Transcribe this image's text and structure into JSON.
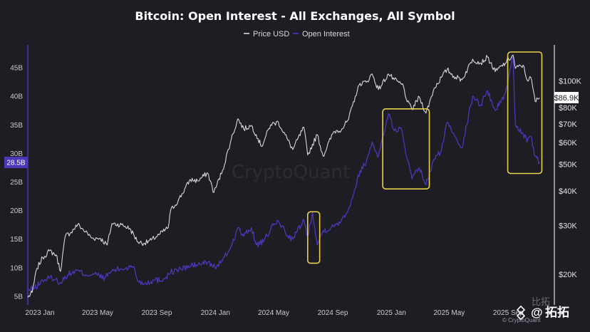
{
  "chart_data": {
    "type": "line",
    "title": "Bitcoin: Open Interest - All Exchanges, All Symbol",
    "legend": {
      "placement": "top-center",
      "entries": [
        {
          "name": "Price USD",
          "color": "#d7d7dd"
        },
        {
          "name": "Open Interest",
          "color": "#4a38b8"
        }
      ]
    },
    "x_axis": {
      "type": "date",
      "range": [
        "2023-01-01",
        "2025-12-31"
      ],
      "ticks": [
        {
          "date": "2023-01-01",
          "label": "2023 Jan"
        },
        {
          "date": "2023-05-01",
          "label": "2023 May"
        },
        {
          "date": "2023-09-01",
          "label": "2023 Sep"
        },
        {
          "date": "2024-01-01",
          "label": "2024 Jan"
        },
        {
          "date": "2024-05-01",
          "label": "2024 May"
        },
        {
          "date": "2024-09-01",
          "label": "2024 Sep"
        },
        {
          "date": "2025-01-01",
          "label": "2025 Jan"
        },
        {
          "date": "2025-05-01",
          "label": "2025 May"
        },
        {
          "date": "2025-09-01",
          "label": "2025 Sep"
        }
      ]
    },
    "y_left": {
      "name": "Open Interest",
      "scale": "linear",
      "range": [
        3.5,
        49
      ],
      "ticks": [
        {
          "value": 5,
          "label": "5B"
        },
        {
          "value": 10,
          "label": "10B"
        },
        {
          "value": 15,
          "label": "15B"
        },
        {
          "value": 20,
          "label": "20B"
        },
        {
          "value": 25,
          "label": "25B"
        },
        {
          "value": 30,
          "label": "30B"
        },
        {
          "value": 35,
          "label": "35B"
        },
        {
          "value": 40,
          "label": "40B"
        },
        {
          "value": 45,
          "label": "45B"
        }
      ],
      "current_label": {
        "value": 28.5,
        "label": "28.5B",
        "color": "#4a38b8"
      }
    },
    "y_right": {
      "name": "Price USD",
      "scale": "log",
      "range": [
        15500,
        135000
      ],
      "ticks": [
        {
          "value": 20000,
          "label": "$20K"
        },
        {
          "value": 30000,
          "label": "$30K"
        },
        {
          "value": 40000,
          "label": "$40K"
        },
        {
          "value": 50000,
          "label": "$50K"
        },
        {
          "value": 60000,
          "label": "$60K"
        },
        {
          "value": 70000,
          "label": "$70K"
        },
        {
          "value": 80000,
          "label": "$80K"
        },
        {
          "value": 100000,
          "label": "$100K"
        }
      ],
      "current_label": {
        "value": 86900,
        "label": "$86.9K"
      }
    },
    "grid": false,
    "series": [
      {
        "name": "Price USD",
        "axis": "right",
        "color": "#d7d7dd",
        "points": [
          [
            "2023-01-01",
            16500
          ],
          [
            "2023-01-10",
            17200
          ],
          [
            "2023-01-20",
            21000
          ],
          [
            "2023-02-01",
            23000
          ],
          [
            "2023-02-15",
            24300
          ],
          [
            "2023-03-01",
            23500
          ],
          [
            "2023-03-10",
            20500
          ],
          [
            "2023-03-20",
            27500
          ],
          [
            "2023-04-01",
            28400
          ],
          [
            "2023-04-15",
            30300
          ],
          [
            "2023-05-01",
            28500
          ],
          [
            "2023-05-15",
            27000
          ],
          [
            "2023-06-01",
            27000
          ],
          [
            "2023-06-15",
            25500
          ],
          [
            "2023-06-25",
            30500
          ],
          [
            "2023-07-15",
            30200
          ],
          [
            "2023-08-01",
            29300
          ],
          [
            "2023-08-18",
            26200
          ],
          [
            "2023-09-01",
            25900
          ],
          [
            "2023-09-15",
            26600
          ],
          [
            "2023-10-01",
            27800
          ],
          [
            "2023-10-20",
            29500
          ],
          [
            "2023-10-25",
            34000
          ],
          [
            "2023-11-10",
            37000
          ],
          [
            "2023-12-05",
            44000
          ],
          [
            "2023-12-20",
            43500
          ],
          [
            "2024-01-10",
            46500
          ],
          [
            "2024-01-23",
            39500
          ],
          [
            "2024-02-10",
            47500
          ],
          [
            "2024-02-28",
            61500
          ],
          [
            "2024-03-13",
            73000
          ],
          [
            "2024-03-25",
            67000
          ],
          [
            "2024-04-10",
            69000
          ],
          [
            "2024-04-20",
            64000
          ],
          [
            "2024-05-01",
            58000
          ],
          [
            "2024-05-20",
            69500
          ],
          [
            "2024-06-05",
            71000
          ],
          [
            "2024-06-25",
            61000
          ],
          [
            "2024-07-05",
            56500
          ],
          [
            "2024-07-28",
            68000
          ],
          [
            "2024-08-05",
            54000
          ],
          [
            "2024-08-25",
            64000
          ],
          [
            "2024-09-06",
            53500
          ],
          [
            "2024-09-28",
            65500
          ],
          [
            "2024-10-15",
            67000
          ],
          [
            "2024-10-29",
            72500
          ],
          [
            "2024-11-12",
            88000
          ],
          [
            "2024-11-22",
            98000
          ],
          [
            "2024-12-05",
            99000
          ],
          [
            "2024-12-17",
            106000
          ],
          [
            "2024-12-30",
            93000
          ],
          [
            "2025-01-20",
            106000
          ],
          [
            "2025-02-01",
            101000
          ],
          [
            "2025-02-20",
            96000
          ],
          [
            "2025-02-28",
            84000
          ],
          [
            "2025-03-10",
            79000
          ],
          [
            "2025-03-25",
            87500
          ],
          [
            "2025-04-08",
            76500
          ],
          [
            "2025-04-25",
            94000
          ],
          [
            "2025-05-10",
            103000
          ],
          [
            "2025-05-22",
            110000
          ],
          [
            "2025-06-05",
            104000
          ],
          [
            "2025-06-22",
            101000
          ],
          [
            "2025-07-14",
            120000
          ],
          [
            "2025-07-31",
            116000
          ],
          [
            "2025-08-14",
            122000
          ],
          [
            "2025-08-30",
            108000
          ],
          [
            "2025-09-20",
            116000
          ],
          [
            "2025-10-06",
            124000
          ],
          [
            "2025-10-11",
            111000
          ],
          [
            "2025-10-27",
            114000
          ],
          [
            "2025-11-04",
            101000
          ],
          [
            "2025-11-12",
            103000
          ],
          [
            "2025-11-21",
            84500
          ],
          [
            "2025-11-30",
            86900
          ]
        ]
      },
      {
        "name": "Open Interest",
        "axis": "left",
        "color": "#4a38b8",
        "points": [
          [
            "2023-01-01",
            6.0
          ],
          [
            "2023-01-15",
            6.4
          ],
          [
            "2023-02-01",
            7.8
          ],
          [
            "2023-02-20",
            8.3
          ],
          [
            "2023-03-10",
            7.4
          ],
          [
            "2023-03-25",
            8.8
          ],
          [
            "2023-04-15",
            9.5
          ],
          [
            "2023-05-01",
            8.8
          ],
          [
            "2023-05-20",
            8.9
          ],
          [
            "2023-06-10",
            8.2
          ],
          [
            "2023-06-25",
            9.5
          ],
          [
            "2023-07-15",
            9.8
          ],
          [
            "2023-08-10",
            10.2
          ],
          [
            "2023-08-18",
            7.6
          ],
          [
            "2023-09-01",
            7.3
          ],
          [
            "2023-09-20",
            7.8
          ],
          [
            "2023-10-10",
            8.0
          ],
          [
            "2023-10-25",
            9.2
          ],
          [
            "2023-11-15",
            9.8
          ],
          [
            "2023-12-10",
            10.4
          ],
          [
            "2023-12-25",
            10.6
          ],
          [
            "2024-01-10",
            11.0
          ],
          [
            "2024-01-25",
            10.1
          ],
          [
            "2024-02-10",
            11.2
          ],
          [
            "2024-02-28",
            13.8
          ],
          [
            "2024-03-13",
            17.0
          ],
          [
            "2024-03-25",
            15.5
          ],
          [
            "2024-04-10",
            17.0
          ],
          [
            "2024-04-20",
            14.0
          ],
          [
            "2024-05-05",
            14.5
          ],
          [
            "2024-05-20",
            16.8
          ],
          [
            "2024-06-05",
            18.2
          ],
          [
            "2024-06-25",
            15.6
          ],
          [
            "2024-07-05",
            15.0
          ],
          [
            "2024-07-28",
            18.4
          ],
          [
            "2024-08-05",
            15.5
          ],
          [
            "2024-08-15",
            19.8
          ],
          [
            "2024-08-20",
            16.8
          ],
          [
            "2024-08-25",
            14.0
          ],
          [
            "2024-09-06",
            16.5
          ],
          [
            "2024-09-28",
            17.2
          ],
          [
            "2024-10-15",
            18.5
          ],
          [
            "2024-10-29",
            20.3
          ],
          [
            "2024-11-12",
            24.0
          ],
          [
            "2024-11-22",
            27.0
          ],
          [
            "2024-12-05",
            28.5
          ],
          [
            "2024-12-17",
            32.0
          ],
          [
            "2024-12-30",
            29.5
          ],
          [
            "2025-01-20",
            37.0
          ],
          [
            "2025-02-01",
            34.0
          ],
          [
            "2025-02-15",
            34.5
          ],
          [
            "2025-02-28",
            29.0
          ],
          [
            "2025-03-10",
            25.5
          ],
          [
            "2025-03-25",
            27.5
          ],
          [
            "2025-04-08",
            24.5
          ],
          [
            "2025-04-25",
            29.0
          ],
          [
            "2025-05-10",
            30.5
          ],
          [
            "2025-05-22",
            35.5
          ],
          [
            "2025-06-05",
            33.5
          ],
          [
            "2025-06-22",
            31.0
          ],
          [
            "2025-07-14",
            40.0
          ],
          [
            "2025-07-31",
            38.5
          ],
          [
            "2025-08-14",
            41.0
          ],
          [
            "2025-08-30",
            37.5
          ],
          [
            "2025-09-20",
            40.5
          ],
          [
            "2025-10-06",
            47.0
          ],
          [
            "2025-10-11",
            35.0
          ],
          [
            "2025-10-27",
            33.5
          ],
          [
            "2025-11-04",
            32.0
          ],
          [
            "2025-11-12",
            33.0
          ],
          [
            "2025-11-21",
            29.5
          ],
          [
            "2025-11-30",
            28.5
          ]
        ]
      }
    ],
    "annotations": [
      {
        "type": "box",
        "color": "#e6d34a",
        "x_range": [
          "2024-08-05",
          "2024-08-30"
        ],
        "y_left_range": [
          10.8,
          19.8
        ]
      },
      {
        "type": "box",
        "color": "#e6d34a",
        "x_range": [
          "2025-01-08",
          "2025-04-15"
        ],
        "y_left_range": [
          23.8,
          37.8
        ]
      },
      {
        "type": "box",
        "color": "#e6d34a",
        "x_range": [
          "2025-09-25",
          "2025-12-05"
        ],
        "y_left_range": [
          26.5,
          49
        ]
      }
    ]
  },
  "watermark": "CryptoQuant",
  "credit": "© CryptoQuant",
  "brand": {
    "cn_faint": "比拓",
    "at": "@",
    "name": "拓拓"
  }
}
